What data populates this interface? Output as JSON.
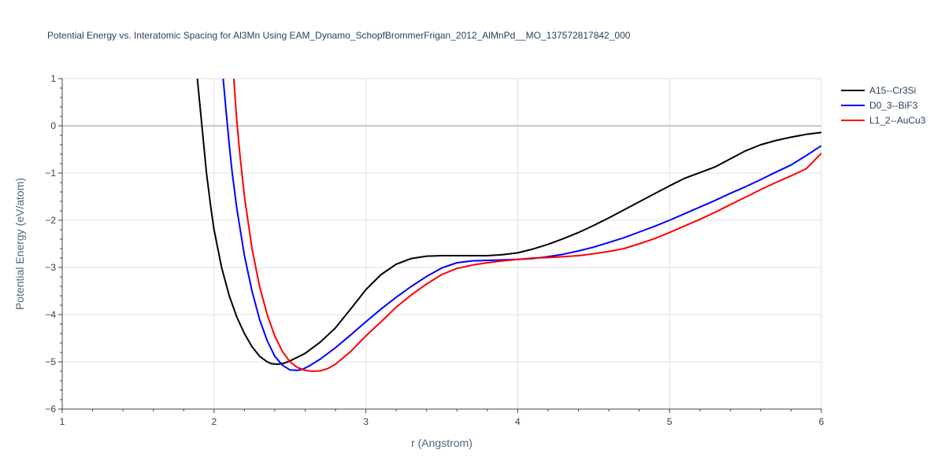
{
  "chart_data": {
    "type": "line",
    "title": "Potential Energy vs. Interatomic Spacing for Al3Mn Using EAM_Dynamo_SchopfBrommerFrigan_2012_AlMnPd__MO_137572817842_000",
    "xlabel": "r (Angstrom)",
    "ylabel": "Potential Energy (eV/atom)",
    "xlim": [
      1,
      6
    ],
    "ylim": [
      -6,
      1
    ],
    "xticks": [
      1,
      2,
      3,
      4,
      5,
      6
    ],
    "xtick_labels": [
      "1",
      "2",
      "3",
      "4",
      "5",
      "6"
    ],
    "yticks": [
      -6,
      -5,
      -4,
      -3,
      -2,
      -1,
      0,
      1
    ],
    "ytick_labels": [
      "−6",
      "−5",
      "−4",
      "−3",
      "−2",
      "−1",
      "0",
      "1"
    ],
    "grid": true,
    "legend_position": "top-right",
    "series": [
      {
        "name": "A15--Cr3Si",
        "color": "#000000",
        "x": [
          1.89,
          1.92,
          1.95,
          1.98,
          2.0,
          2.05,
          2.1,
          2.15,
          2.2,
          2.25,
          2.3,
          2.35,
          2.38,
          2.42,
          2.46,
          2.5,
          2.6,
          2.7,
          2.8,
          2.9,
          3.0,
          3.1,
          3.2,
          3.3,
          3.4,
          3.5,
          3.6,
          3.7,
          3.8,
          3.9,
          4.0,
          4.1,
          4.2,
          4.3,
          4.4,
          4.5,
          4.6,
          4.7,
          4.8,
          4.9,
          5.0,
          5.1,
          5.2,
          5.3,
          5.4,
          5.5,
          5.6,
          5.7,
          5.8,
          5.9,
          6.0
        ],
        "y": [
          1.0,
          0.0,
          -1.0,
          -1.75,
          -2.2,
          -3.0,
          -3.6,
          -4.05,
          -4.4,
          -4.68,
          -4.88,
          -5.0,
          -5.04,
          -5.05,
          -5.03,
          -4.98,
          -4.82,
          -4.58,
          -4.28,
          -3.88,
          -3.47,
          -3.15,
          -2.93,
          -2.81,
          -2.76,
          -2.75,
          -2.75,
          -2.75,
          -2.75,
          -2.73,
          -2.69,
          -2.61,
          -2.51,
          -2.39,
          -2.26,
          -2.11,
          -1.95,
          -1.78,
          -1.61,
          -1.44,
          -1.27,
          -1.11,
          -0.99,
          -0.87,
          -0.7,
          -0.53,
          -0.4,
          -0.31,
          -0.24,
          -0.18,
          -0.14
        ]
      },
      {
        "name": "D0_3--BiF3",
        "color": "#0000ff",
        "x": [
          2.06,
          2.08,
          2.1,
          2.12,
          2.15,
          2.2,
          2.25,
          2.3,
          2.35,
          2.4,
          2.45,
          2.5,
          2.55,
          2.58,
          2.62,
          2.7,
          2.8,
          2.9,
          3.0,
          3.1,
          3.2,
          3.3,
          3.4,
          3.5,
          3.6,
          3.7,
          3.8,
          3.9,
          4.0,
          4.1,
          4.2,
          4.3,
          4.4,
          4.5,
          4.6,
          4.7,
          4.8,
          4.9,
          5.0,
          5.1,
          5.2,
          5.3,
          5.4,
          5.5,
          5.6,
          5.7,
          5.8,
          5.9,
          6.0
        ],
        "y": [
          1.0,
          0.3,
          -0.4,
          -1.0,
          -1.75,
          -2.75,
          -3.5,
          -4.1,
          -4.55,
          -4.88,
          -5.07,
          -5.17,
          -5.18,
          -5.16,
          -5.1,
          -4.94,
          -4.7,
          -4.43,
          -4.15,
          -3.88,
          -3.63,
          -3.4,
          -3.19,
          -3.01,
          -2.9,
          -2.86,
          -2.85,
          -2.84,
          -2.83,
          -2.81,
          -2.77,
          -2.72,
          -2.65,
          -2.57,
          -2.47,
          -2.37,
          -2.25,
          -2.13,
          -2.0,
          -1.86,
          -1.72,
          -1.58,
          -1.43,
          -1.29,
          -1.14,
          -0.98,
          -0.83,
          -0.63,
          -0.42
        ]
      },
      {
        "name": "L1_2--AuCu3",
        "color": "#ff0000",
        "x": [
          2.13,
          2.15,
          2.17,
          2.2,
          2.25,
          2.3,
          2.35,
          2.4,
          2.45,
          2.5,
          2.55,
          2.6,
          2.65,
          2.7,
          2.75,
          2.8,
          2.9,
          3.0,
          3.1,
          3.2,
          3.3,
          3.4,
          3.5,
          3.6,
          3.7,
          3.8,
          3.9,
          4.0,
          4.1,
          4.2,
          4.3,
          4.4,
          4.5,
          4.6,
          4.7,
          4.8,
          4.9,
          5.0,
          5.1,
          5.2,
          5.3,
          5.4,
          5.5,
          5.6,
          5.7,
          5.8,
          5.9,
          6.0
        ],
        "y": [
          1.0,
          0.1,
          -0.6,
          -1.5,
          -2.6,
          -3.4,
          -4.0,
          -4.45,
          -4.78,
          -5.0,
          -5.12,
          -5.18,
          -5.2,
          -5.19,
          -5.14,
          -5.05,
          -4.78,
          -4.45,
          -4.15,
          -3.84,
          -3.58,
          -3.35,
          -3.15,
          -3.02,
          -2.95,
          -2.9,
          -2.86,
          -2.83,
          -2.8,
          -2.79,
          -2.77,
          -2.75,
          -2.71,
          -2.66,
          -2.6,
          -2.5,
          -2.39,
          -2.26,
          -2.12,
          -1.98,
          -1.83,
          -1.67,
          -1.51,
          -1.35,
          -1.2,
          -1.06,
          -0.91,
          -0.58
        ]
      }
    ]
  }
}
